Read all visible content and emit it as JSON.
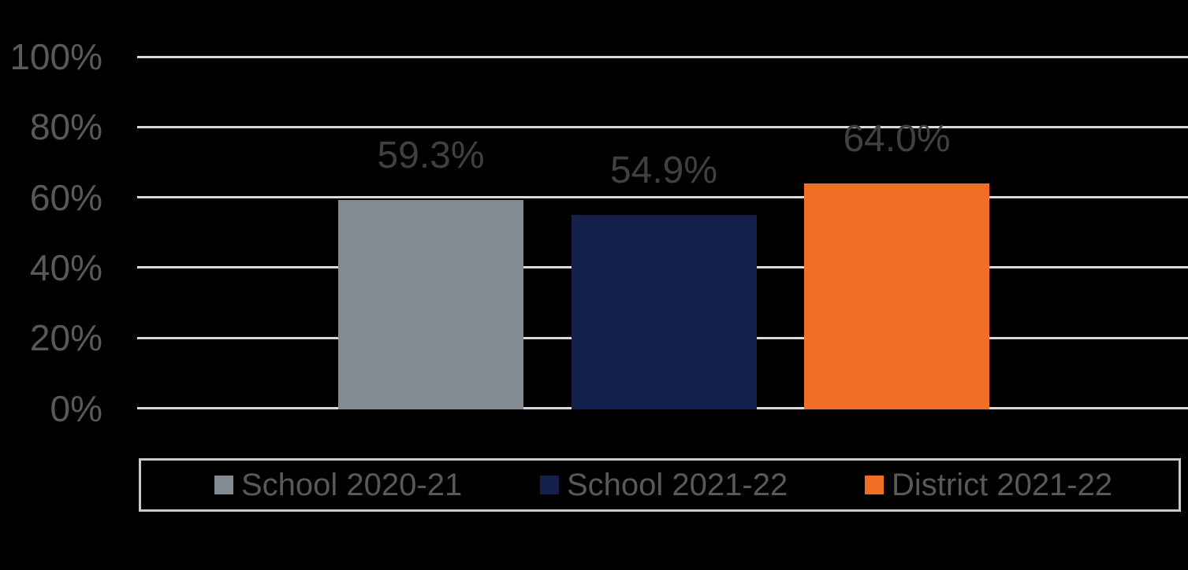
{
  "chart_data": {
    "type": "bar",
    "title": "",
    "xlabel": "",
    "ylabel": "",
    "categories": [
      "School 2020-21",
      "School 2021-22",
      "District 2021-22"
    ],
    "series": [
      {
        "name": "School 2020-21",
        "value": 59.3,
        "data_label": "59.3%",
        "color": "#828B94"
      },
      {
        "name": "School 2021-22",
        "value": 54.9,
        "data_label": "54.9%",
        "color": "#12204B"
      },
      {
        "name": "District 2021-22",
        "value": 64.0,
        "data_label": "64.0%",
        "color": "#F26E24"
      }
    ],
    "y_axis": {
      "min": 0,
      "max": 100,
      "step": 20,
      "tick_labels_top_to_bottom": [
        "100%",
        "80%",
        "60%",
        "40%",
        "20%",
        "0%"
      ]
    },
    "grid": true,
    "legend_position": "bottom",
    "legend_entries": [
      "School 2020-21",
      "School 2021-22",
      "District 2021-22"
    ]
  },
  "colors": {
    "background": "#000000",
    "gridline": "#D9D9D9",
    "axis_tick_text": "#595959",
    "data_label_text": "#404040",
    "legend_text": "#58595B",
    "legend_border": "#C9C9C9"
  }
}
